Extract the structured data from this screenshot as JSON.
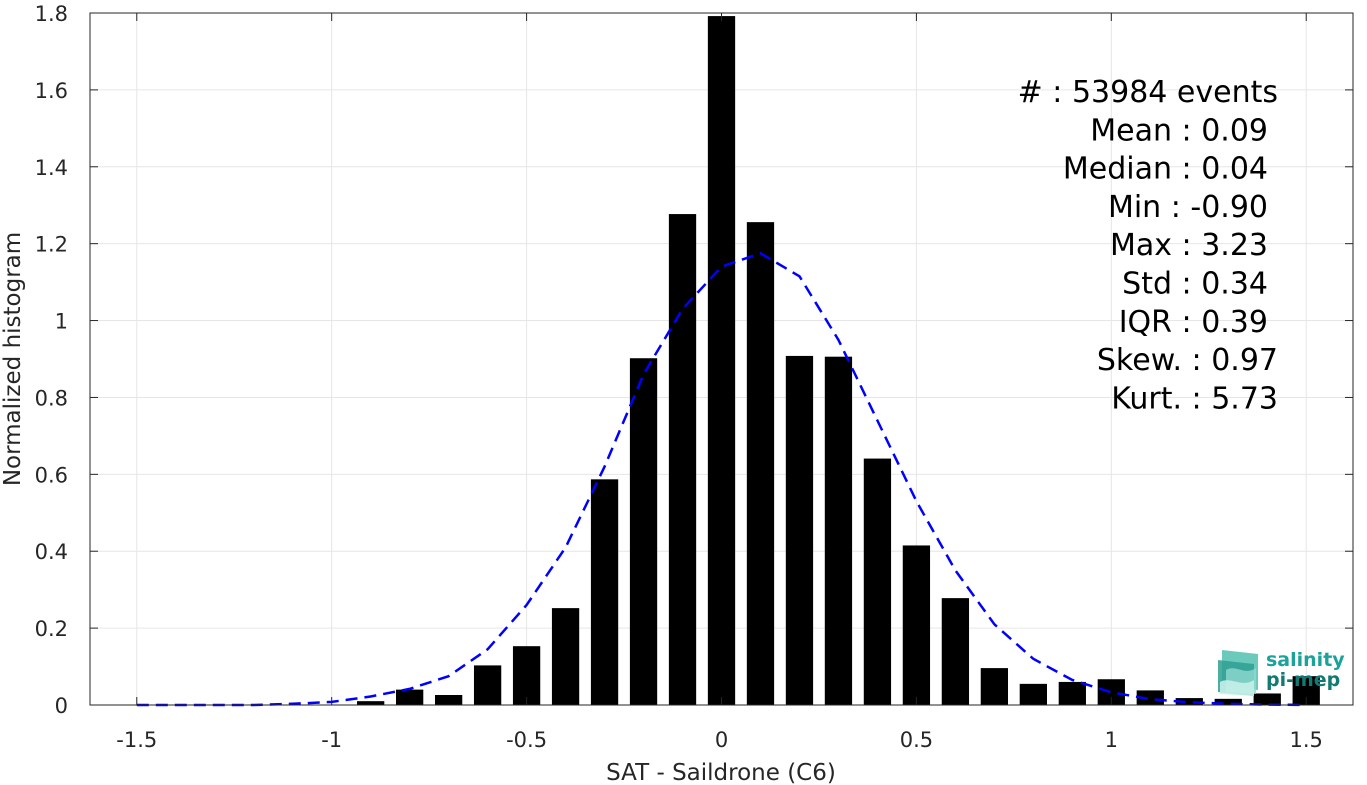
{
  "chart_data": {
    "type": "bar",
    "xlabel": "SAT - Saildrone (C6)",
    "ylabel": "Normalized histogram",
    "xlim": [
      -1.62,
      1.62
    ],
    "ylim": [
      0,
      1.8
    ],
    "xticks": [
      "-1.5",
      "-1",
      "-0.5",
      "0",
      "0.5",
      "1",
      "1.5"
    ],
    "yticks": [
      "0",
      "0.2",
      "0.4",
      "0.6",
      "0.8",
      "1",
      "1.2",
      "1.4",
      "1.6",
      "1.8"
    ],
    "grid": true,
    "bar_color": "#000000",
    "bars": {
      "x": [
        -0.9,
        -0.8,
        -0.7,
        -0.6,
        -0.5,
        -0.4,
        -0.3,
        -0.2,
        -0.1,
        0.0,
        0.1,
        0.2,
        0.3,
        0.4,
        0.5,
        0.6,
        0.7,
        0.8,
        0.9,
        1.0,
        1.1,
        1.2,
        1.3,
        1.4,
        1.5
      ],
      "values": [
        0.01,
        0.04,
        0.026,
        0.103,
        0.153,
        0.252,
        0.587,
        0.902,
        1.277,
        1.792,
        1.256,
        0.908,
        0.906,
        0.641,
        0.415,
        0.278,
        0.096,
        0.055,
        0.06,
        0.067,
        0.038,
        0.018,
        0.016,
        0.03,
        0.075
      ]
    },
    "fit_curve": {
      "style": "dashed",
      "color": "#0000FF",
      "x": [
        -1.5,
        -1.4,
        -1.3,
        -1.2,
        -1.1,
        -1.0,
        -0.9,
        -0.8,
        -0.7,
        -0.6,
        -0.5,
        -0.4,
        -0.3,
        -0.2,
        -0.1,
        0.0,
        0.1,
        0.2,
        0.3,
        0.4,
        0.5,
        0.6,
        0.7,
        0.8,
        0.9,
        1.0,
        1.1,
        1.2,
        1.3,
        1.4,
        1.5
      ],
      "y": [
        0.0,
        0.0,
        0.0,
        0.0,
        0.003,
        0.008,
        0.022,
        0.042,
        0.075,
        0.145,
        0.26,
        0.41,
        0.62,
        0.86,
        1.03,
        1.14,
        1.175,
        1.115,
        0.95,
        0.74,
        0.53,
        0.35,
        0.21,
        0.12,
        0.065,
        0.033,
        0.015,
        0.007,
        0.003,
        0.001,
        0.0
      ]
    },
    "stats": [
      "#  : 53984 events",
      "Mean : 0.09",
      "Median : 0.04",
      "Min : -0.90",
      "Max : 3.23",
      "Std : 0.34",
      "IQR : 0.39",
      "Skew. : 0.97",
      "Kurt. : 5.73"
    ]
  },
  "logo": {
    "line1": "salinity",
    "line2": "pi-mep",
    "color1": "#1aa39a",
    "color2": "#117a72"
  }
}
